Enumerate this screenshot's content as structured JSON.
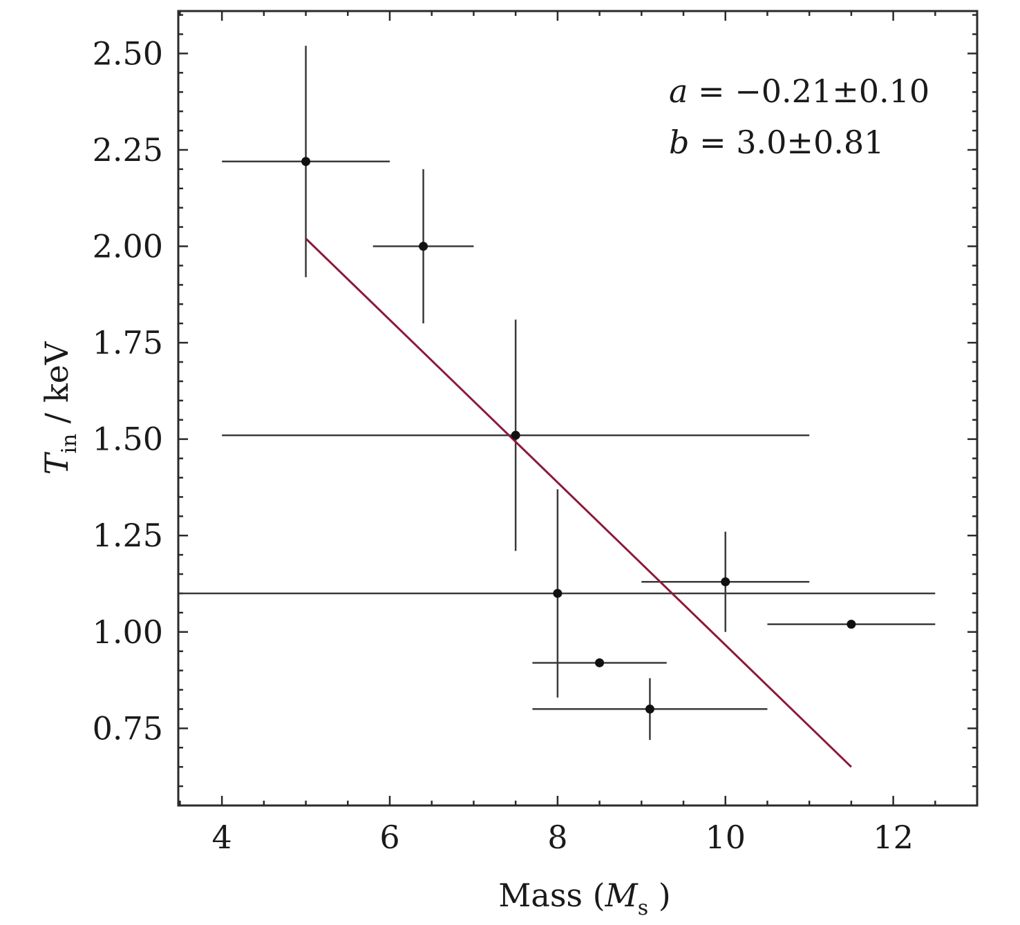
{
  "chart_data": {
    "type": "scatter",
    "title": "",
    "xlabel": {
      "text": "Mass (",
      "symbol": "M",
      "subscript": "s",
      "close": " )"
    },
    "ylabel": {
      "symbol": "T",
      "subscript": "in",
      "text": " / keV"
    },
    "xlim": [
      3.48,
      13.0
    ],
    "ylim": [
      0.55,
      2.61
    ],
    "xticks": [
      4,
      6,
      8,
      10,
      12
    ],
    "xtick_labels": [
      "4",
      "6",
      "8",
      "10",
      "12"
    ],
    "yticks": [
      0.75,
      1.0,
      1.25,
      1.5,
      1.75,
      2.0,
      2.25,
      2.5
    ],
    "ytick_labels": [
      "0.75",
      "1.00",
      "1.25",
      "1.50",
      "1.75",
      "2.00",
      "2.25",
      "2.50"
    ],
    "grid": false,
    "points": [
      {
        "x": 5.0,
        "y": 2.22,
        "xerr": [
          4.0,
          6.0
        ],
        "yerr": [
          1.92,
          2.52
        ]
      },
      {
        "x": 6.4,
        "y": 2.0,
        "xerr": [
          5.8,
          7.0
        ],
        "yerr": [
          1.8,
          2.2
        ]
      },
      {
        "x": 7.5,
        "y": 1.51,
        "xerr": [
          4.0,
          11.0
        ],
        "yerr": [
          1.21,
          1.81
        ]
      },
      {
        "x": 8.0,
        "y": 1.1,
        "xerr": [
          3.5,
          12.5
        ],
        "yerr": [
          0.83,
          1.37
        ]
      },
      {
        "x": 8.5,
        "y": 0.92,
        "xerr": [
          7.7,
          9.3
        ],
        "yerr": null
      },
      {
        "x": 9.1,
        "y": 0.8,
        "xerr": [
          7.7,
          10.5
        ],
        "yerr": [
          0.72,
          0.88
        ]
      },
      {
        "x": 10.0,
        "y": 1.13,
        "xerr": [
          9.0,
          11.0
        ],
        "yerr": [
          1.0,
          1.26
        ]
      },
      {
        "x": 11.5,
        "y": 1.02,
        "xerr": [
          10.5,
          12.5
        ],
        "yerr": null
      }
    ],
    "fit_line": {
      "x": [
        5.0,
        11.5
      ],
      "y": [
        2.02,
        0.65
      ],
      "color": "#8b1a3a"
    },
    "annotations": [
      {
        "var": "a",
        "text": " = −0.21±0.10"
      },
      {
        "var": "b",
        "text": " = 3.0±0.81"
      }
    ]
  }
}
